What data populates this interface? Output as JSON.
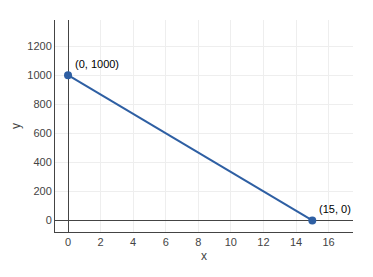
{
  "chart_data": {
    "type": "line",
    "x": [
      0,
      15
    ],
    "values": [
      1000,
      0
    ],
    "color": "#2E5FA3",
    "marker": "circle",
    "xlabel": "x",
    "ylabel": "y",
    "annotations": [
      {
        "text": "(0, 1000)",
        "x": 0,
        "y": 1000
      },
      {
        "text": "(15, 0)",
        "x": 15,
        "y": 0
      }
    ],
    "xlim": [
      -0.8,
      17.5
    ],
    "ylim": [
      -80,
      1380
    ],
    "xticks": [
      0,
      2,
      4,
      6,
      8,
      10,
      12,
      14,
      16
    ],
    "yticks": [
      0,
      200,
      400,
      600,
      800,
      1000,
      1200
    ],
    "grid": true
  }
}
